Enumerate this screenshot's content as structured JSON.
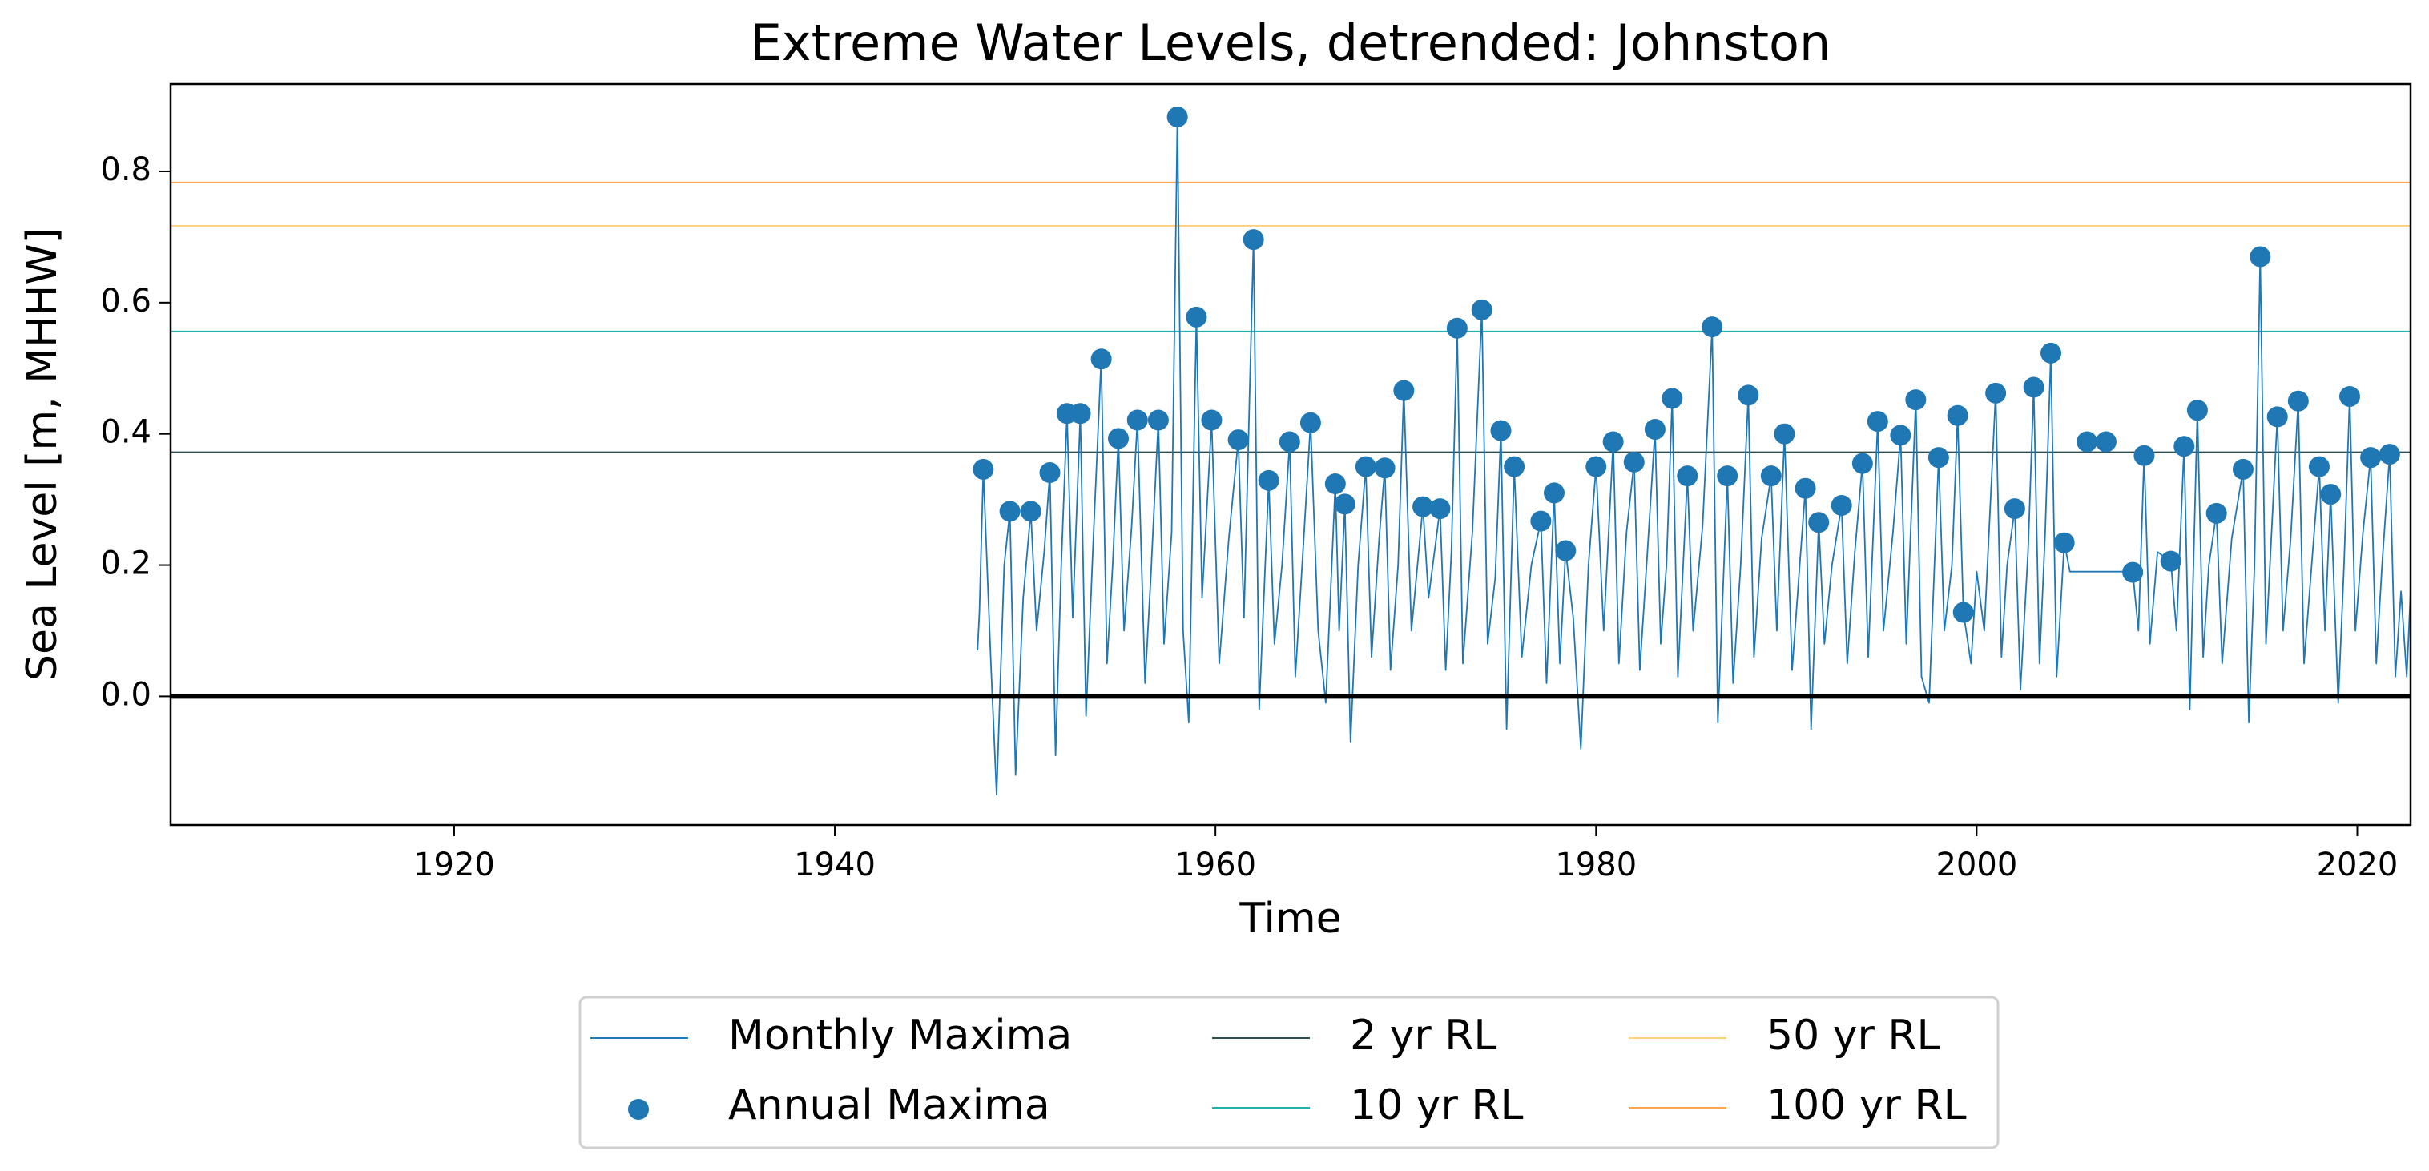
{
  "chart_data": {
    "type": "line",
    "title": "Extreme Water Levels, detrended: Johnston",
    "xlabel": "Time",
    "ylabel": "Sea Level [m, MHHW]",
    "xlim": [
      1905.1,
      2022.8
    ],
    "ylim": [
      -0.196,
      0.933
    ],
    "xticks": [
      1920,
      1940,
      1960,
      1980,
      2000,
      2020
    ],
    "yticks": [
      {
        "value": 0,
        "label": "0.0"
      },
      0.2,
      0.4,
      0.6,
      0.8
    ],
    "legend": "lower center",
    "series": [
      {
        "name": "Monthly Maxima",
        "type": "line",
        "color": "#1f77b4",
        "x": [
          1947.5,
          1947.6,
          1947.8,
          1948.2,
          1948.5,
          1948.9,
          1949.2,
          1949.5,
          1949.9,
          1950.3,
          1950.6,
          1951.0,
          1951.3,
          1951.6,
          1951.9,
          1952.2,
          1952.5,
          1952.9,
          1953.2,
          1953.6,
          1954.0,
          1954.3,
          1954.6,
          1954.9,
          1955.2,
          1955.6,
          1955.9,
          1956.3,
          1956.6,
          1957.0,
          1957.3,
          1957.7,
          1958.0,
          1958.3,
          1958.6,
          1959.0,
          1959.3,
          1959.8,
          1960.2,
          1960.7,
          1961.2,
          1961.5,
          1962.0,
          1962.3,
          1962.8,
          1963.1,
          1963.5,
          1963.9,
          1964.2,
          1964.6,
          1965.0,
          1965.4,
          1965.8,
          1966.3,
          1966.5,
          1966.8,
          1967.1,
          1967.5,
          1967.9,
          1968.2,
          1968.6,
          1968.9,
          1969.2,
          1969.6,
          1969.9,
          1970.3,
          1970.9,
          1971.2,
          1971.8,
          1972.1,
          1972.4,
          1972.7,
          1973.0,
          1973.5,
          1974.0,
          1974.3,
          1974.7,
          1975.0,
          1975.3,
          1975.7,
          1976.1,
          1976.6,
          1977.1,
          1977.4,
          1977.8,
          1978.1,
          1978.4,
          1978.8,
          1979.2,
          1979.6,
          1980.0,
          1980.4,
          1980.9,
          1981.2,
          1981.6,
          1982.0,
          1982.3,
          1982.7,
          1983.1,
          1983.4,
          1983.7,
          1984.0,
          1984.3,
          1984.8,
          1985.1,
          1985.6,
          1986.1,
          1986.4,
          1986.9,
          1987.2,
          1987.6,
          1988.0,
          1988.3,
          1988.7,
          1989.2,
          1989.5,
          1989.9,
          1990.3,
          1990.7,
          1991.0,
          1991.3,
          1991.7,
          1992.0,
          1992.4,
          1992.9,
          1993.2,
          1993.6,
          1994.0,
          1994.3,
          1994.8,
          1995.1,
          1995.6,
          1996.0,
          1996.3,
          1996.8,
          1997.1,
          1997.5,
          1998.0,
          1998.3,
          1998.7,
          1999.0,
          1999.3,
          1999.7,
          2000.0,
          2000.4,
          2001.0,
          2001.3,
          2001.6,
          2002.0,
          2002.3,
          2002.7,
          2003.0,
          2003.3,
          2003.6,
          2003.9,
          2004.2,
          2004.6,
          2004.9,
          2008.0,
          2008.2,
          2008.5,
          2008.8,
          2009.1,
          2009.5,
          2010.2,
          2010.5,
          2010.9,
          2011.2,
          2011.6,
          2011.9,
          2012.2,
          2012.6,
          2012.9,
          2013.4,
          2014.0,
          2014.3,
          2014.6,
          2014.9,
          2015.2,
          2015.8,
          2016.1,
          2016.5,
          2016.9,
          2017.2,
          2017.6,
          2018.0,
          2018.3,
          2018.6,
          2019.0,
          2019.3,
          2019.6,
          2019.9,
          2020.3,
          2020.7,
          2021.0,
          2021.3,
          2021.7,
          2022.0,
          2022.3,
          2022.6,
          2022.8
        ],
        "values": [
          0.07,
          0.13,
          0.346,
          0.05,
          -0.15,
          0.2,
          0.282,
          -0.12,
          0.15,
          0.282,
          0.1,
          0.22,
          0.341,
          -0.09,
          0.2,
          0.431,
          0.12,
          0.431,
          -0.03,
          0.25,
          0.514,
          0.05,
          0.2,
          0.393,
          0.1,
          0.26,
          0.421,
          0.02,
          0.18,
          0.421,
          0.08,
          0.25,
          0.883,
          0.1,
          -0.04,
          0.578,
          0.15,
          0.421,
          0.05,
          0.24,
          0.391,
          0.12,
          0.696,
          -0.02,
          0.329,
          0.08,
          0.2,
          0.388,
          0.03,
          0.22,
          0.417,
          0.1,
          -0.01,
          0.324,
          0.1,
          0.293,
          -0.07,
          0.2,
          0.35,
          0.06,
          0.24,
          0.348,
          0.04,
          0.2,
          0.466,
          0.1,
          0.289,
          0.15,
          0.286,
          0.04,
          0.22,
          0.561,
          0.05,
          0.25,
          0.589,
          0.08,
          0.18,
          0.405,
          -0.05,
          0.35,
          0.06,
          0.2,
          0.267,
          0.02,
          0.31,
          0.05,
          0.222,
          0.12,
          -0.08,
          0.2,
          0.35,
          0.1,
          0.388,
          0.05,
          0.25,
          0.357,
          0.04,
          0.22,
          0.407,
          0.08,
          0.2,
          0.454,
          0.03,
          0.336,
          0.1,
          0.26,
          0.563,
          -0.04,
          0.336,
          0.02,
          0.2,
          0.459,
          0.06,
          0.24,
          0.336,
          0.1,
          0.4,
          0.04,
          0.2,
          0.317,
          -0.05,
          0.265,
          0.08,
          0.2,
          0.291,
          0.05,
          0.22,
          0.355,
          0.06,
          0.419,
          0.1,
          0.25,
          0.398,
          0.08,
          0.452,
          0.03,
          -0.01,
          0.364,
          0.1,
          0.2,
          0.428,
          0.128,
          0.05,
          0.19,
          0.1,
          0.462,
          0.06,
          0.2,
          0.286,
          0.01,
          0.22,
          0.471,
          0.05,
          0.25,
          0.523,
          0.03,
          0.234,
          0.19,
          0.19,
          0.189,
          0.1,
          0.367,
          0.08,
          0.22,
          0.206,
          0.1,
          0.381,
          -0.02,
          0.436,
          0.06,
          0.2,
          0.279,
          0.05,
          0.24,
          0.346,
          -0.04,
          0.2,
          0.67,
          0.08,
          0.426,
          0.1,
          0.24,
          0.45,
          0.05,
          0.2,
          0.35,
          0.1,
          0.308,
          -0.01,
          0.2,
          0.457,
          0.1,
          0.25,
          0.364,
          0.05,
          0.2,
          0.369,
          0.03,
          0.16,
          0.03,
          0.16
        ]
      },
      {
        "name": "Annual Maxima",
        "type": "scatter",
        "color": "#1f77b4",
        "x": [
          1947.8,
          1949.2,
          1950.3,
          1951.3,
          1952.2,
          1952.9,
          1954.0,
          1954.9,
          1955.9,
          1957.0,
          1958.0,
          1959.0,
          1959.8,
          1961.2,
          1962.0,
          1962.8,
          1963.9,
          1965.0,
          1966.3,
          1966.8,
          1967.9,
          1968.9,
          1969.9,
          1970.9,
          1971.8,
          1972.7,
          1974.0,
          1975.0,
          1975.7,
          1977.1,
          1977.8,
          1978.4,
          1980.0,
          1980.9,
          1982.0,
          1983.1,
          1984.0,
          1984.8,
          1986.1,
          1986.9,
          1988.0,
          1989.2,
          1989.9,
          1991.0,
          1991.7,
          1992.9,
          1994.0,
          1994.8,
          1996.0,
          1996.8,
          1998.0,
          1999.0,
          1999.3,
          2001.0,
          2002.0,
          2003.0,
          2003.9,
          2004.6,
          2005.8,
          2006.8,
          2008.2,
          2008.8,
          2010.2,
          2010.9,
          2011.6,
          2012.6,
          2014.0,
          2014.9,
          2015.8,
          2016.9,
          2018.0,
          2018.6,
          2019.6,
          2020.7,
          2021.7
        ],
        "values": [
          0.346,
          0.282,
          0.282,
          0.341,
          0.431,
          0.431,
          0.514,
          0.393,
          0.421,
          0.421,
          0.883,
          0.578,
          0.421,
          0.391,
          0.696,
          0.329,
          0.388,
          0.417,
          0.324,
          0.293,
          0.35,
          0.348,
          0.466,
          0.289,
          0.286,
          0.561,
          0.589,
          0.405,
          0.35,
          0.267,
          0.31,
          0.222,
          0.35,
          0.388,
          0.357,
          0.407,
          0.454,
          0.336,
          0.563,
          0.336,
          0.459,
          0.336,
          0.4,
          0.317,
          0.265,
          0.291,
          0.355,
          0.419,
          0.398,
          0.452,
          0.364,
          0.428,
          0.128,
          0.462,
          0.286,
          0.471,
          0.523,
          0.234,
          0.388,
          0.388,
          0.189,
          0.367,
          0.206,
          0.381,
          0.436,
          0.279,
          0.346,
          0.67,
          0.426,
          0.45,
          0.35,
          0.308,
          0.457,
          0.364,
          0.369
        ]
      }
    ],
    "return_levels": [
      {
        "name": "2 yr RL",
        "color": "#2f4f4f",
        "value": 0.372
      },
      {
        "name": "10 yr RL",
        "color": "#20b2aa",
        "value": 0.556
      },
      {
        "name": "50 yr RL",
        "color": "#ffd27f",
        "value": 0.717
      },
      {
        "name": "100 yr RL",
        "color": "#ffa550",
        "value": 0.783
      }
    ]
  }
}
